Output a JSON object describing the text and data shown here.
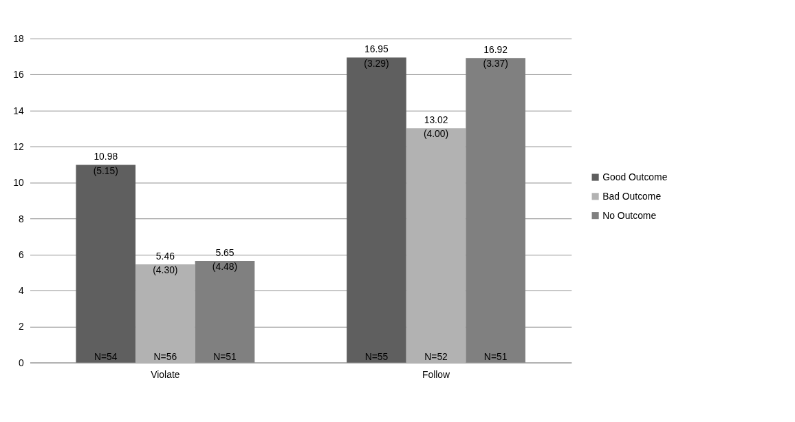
{
  "chart_data": {
    "type": "bar",
    "categories": [
      "Violate",
      "Follow"
    ],
    "series": [
      {
        "name": "Good Outcome",
        "color": "#5f5f5f",
        "values": [
          10.98,
          16.95
        ],
        "value_labels": [
          "10.98\n(5.15)",
          "16.95\n(3.29)"
        ]
      },
      {
        "name": "Bad Outcome",
        "color": "#b2b2b2",
        "values": [
          5.46,
          13.02
        ],
        "value_labels": [
          "5.46\n(4.30)",
          "13.02\n(4.00)"
        ]
      },
      {
        "name": "No Outcome",
        "color": "#808080",
        "values": [
          5.65,
          16.92
        ],
        "value_labels": [
          "5.65\n(4.48)",
          "16.92\n(3.37)"
        ]
      }
    ],
    "annotations": [
      "N=54",
      "N=56",
      "N=51",
      "N=55",
      "N=52",
      "N=51"
    ],
    "ylim": [
      0,
      18
    ],
    "yticks": [
      0,
      2,
      4,
      6,
      8,
      10,
      12,
      14,
      16,
      18
    ],
    "grid": "y",
    "legend": "right"
  }
}
